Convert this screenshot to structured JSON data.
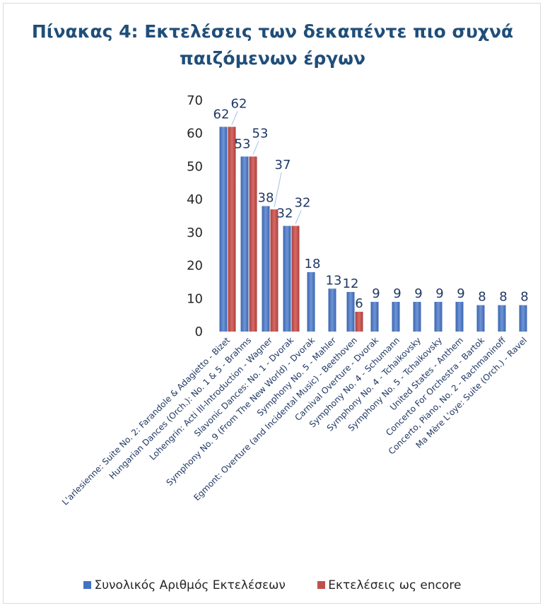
{
  "chart_data": {
    "type": "bar",
    "title": "Πίνακας 4: Εκτελέσεις των δεκαπέντε πιο συχνά παιζόμενων έργων",
    "categories": [
      "L'arlesienne: Suite No. 2: Farandole & Adagietto - Bizet",
      "Hungarian Dances (Orch.): No. 1 & 5 - Brahms",
      "Lohengrin: Acti III-Introduction - Wagner",
      "Slavonic Dances: No. 1 - Dvorak",
      "Symphony No. 9 (From The New World) - Dvorak",
      "Symphony No. 5 - Mahler",
      "Egmont: Overture (and Incidental Music) - Beethoven",
      "Carnival Overture - Dvorak",
      "Symphony No. 4 - Schumann",
      "Symphony No. 4 - Tchaikovsky",
      "Symphony No. 5 - Tchaikovsky",
      "United States - Anthem",
      "Concerto For Orchestra - Bartok",
      "Concerto, Piano, No. 2 - Rachmaninoff",
      "Ma Mère L'oye: Suite (Orch.) - Ravel"
    ],
    "series": [
      {
        "name": "Συνολικός Αριθμός Εκτελέσεων",
        "color": "#4472c4",
        "values": [
          62,
          53,
          38,
          32,
          18,
          13,
          12,
          9,
          9,
          9,
          9,
          9,
          8,
          8,
          8
        ]
      },
      {
        "name": "Εκτελέσεις ως encore",
        "color": "#c0504d",
        "values": [
          62,
          53,
          37,
          32,
          null,
          null,
          6,
          null,
          null,
          null,
          null,
          null,
          null,
          null,
          null
        ]
      }
    ],
    "y_ticks": [
      "0",
      "10",
      "20",
      "30",
      "40",
      "50",
      "60",
      "70"
    ],
    "ylim": [
      0,
      70
    ],
    "grid": false,
    "legend_position": "bottom"
  }
}
